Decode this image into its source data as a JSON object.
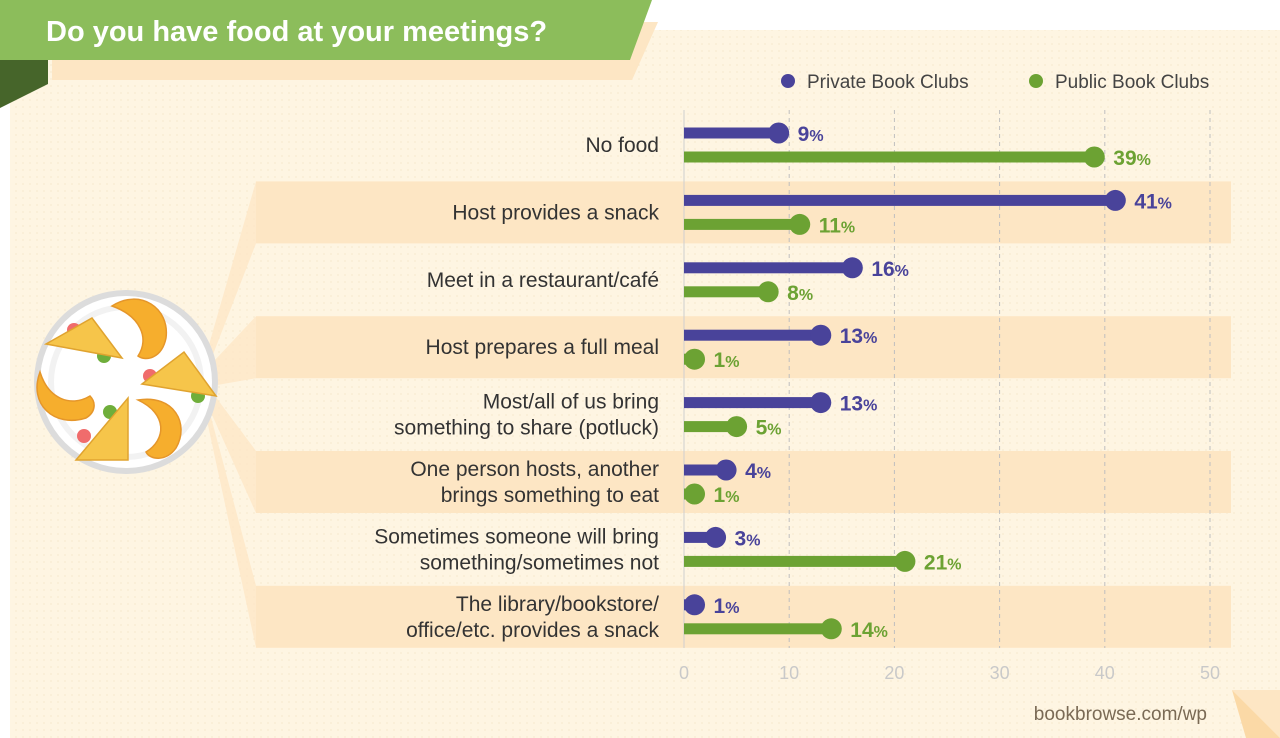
{
  "colors": {
    "private": "#49439a",
    "public": "#6ca233",
    "band": "#fde6c4",
    "panel": "#fef5e2",
    "banner": "#8cbd5b",
    "banner_dark": "#46652a"
  },
  "chart_data": {
    "type": "bar",
    "title": "Do you have food at your meetings?",
    "categories": [
      [
        "No food"
      ],
      [
        "Host provides a snack"
      ],
      [
        "Meet in a restaurant/café"
      ],
      [
        "Host prepares a full meal"
      ],
      [
        "Most/all of us bring",
        "something to share (potluck)"
      ],
      [
        "One person hosts, another",
        "brings something to eat"
      ],
      [
        "Sometimes someone will bring",
        "something/sometimes not"
      ],
      [
        "The library/bookstore/",
        "office/etc. provides a snack"
      ]
    ],
    "series": [
      {
        "name": "Private Book Clubs",
        "values": [
          9,
          41,
          16,
          13,
          13,
          4,
          3,
          1
        ]
      },
      {
        "name": "Public Book Clubs",
        "values": [
          39,
          11,
          8,
          1,
          5,
          1,
          21,
          14
        ]
      }
    ],
    "value_suffix": "%",
    "xlim": [
      0,
      50
    ],
    "xticks": [
      0,
      10,
      20,
      30,
      40,
      50
    ],
    "grid": true,
    "legend": "top-right"
  },
  "source": "bookbrowse.com/wp"
}
